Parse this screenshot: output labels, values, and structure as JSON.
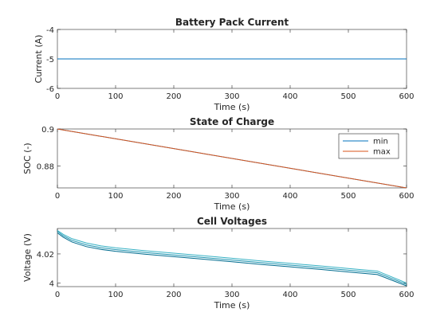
{
  "colors": {
    "series_blue": "#0072bd",
    "series_orange": "#d95319",
    "cell_teal_1": "#006c8f",
    "cell_teal_2": "#1b93b0",
    "cell_teal_3": "#36b1c4",
    "axis": "#262626"
  },
  "chart_data": [
    {
      "type": "line",
      "title": "Battery Pack Current",
      "xlabel": "Time (s)",
      "ylabel": "Current (A)",
      "xlim": [
        0,
        600
      ],
      "ylim": [
        -6,
        -4
      ],
      "xticks": [
        0,
        100,
        200,
        300,
        400,
        500,
        600
      ],
      "yticks": [
        -6,
        -5,
        -4
      ],
      "grid": false,
      "series": [
        {
          "color_key": "series_blue",
          "x": [
            0,
            600
          ],
          "y": [
            -5,
            -5
          ]
        }
      ]
    },
    {
      "type": "line",
      "title": "State of Charge",
      "xlabel": "Time (s)",
      "ylabel": "SOC (-)",
      "xlim": [
        0,
        600
      ],
      "ylim": [
        0.8683,
        0.9
      ],
      "xticks": [
        0,
        100,
        200,
        300,
        400,
        500,
        600
      ],
      "yticks": [
        0.88,
        0.9
      ],
      "grid": false,
      "legend": {
        "placement": "top-right",
        "entries": [
          "min",
          "max"
        ]
      },
      "series": [
        {
          "name": "min",
          "color_key": "series_blue",
          "x": [
            0,
            600
          ],
          "y": [
            0.9,
            0.8683
          ]
        },
        {
          "name": "max",
          "color_key": "series_orange",
          "x": [
            0,
            600
          ],
          "y": [
            0.9,
            0.8683
          ]
        }
      ]
    },
    {
      "type": "line",
      "title": "Cell Voltages",
      "xlabel": "Time (s)",
      "ylabel": "Voltage (V)",
      "xlim": [
        0,
        600
      ],
      "ylim": [
        3.9975,
        4.0375
      ],
      "xticks": [
        0,
        100,
        200,
        300,
        400,
        500,
        600
      ],
      "yticks": [
        4,
        4.02
      ],
      "ytick_labels": [
        "4",
        "4.02"
      ],
      "grid": false,
      "series": [
        {
          "color_key": "cell_teal_3",
          "x": [
            0,
            10,
            25,
            50,
            75,
            100,
            150,
            200,
            250,
            300,
            350,
            400,
            450,
            500,
            550,
            600
          ],
          "y": [
            4.0362,
            4.0335,
            4.0305,
            4.0275,
            4.0255,
            4.0242,
            4.0222,
            4.0205,
            4.0188,
            4.017,
            4.0152,
            4.0135,
            4.0118,
            4.01,
            4.0082,
            4.0
          ]
        },
        {
          "color_key": "cell_teal_2",
          "x": [
            0,
            10,
            25,
            50,
            75,
            100,
            150,
            200,
            250,
            300,
            350,
            400,
            450,
            500,
            550,
            600
          ],
          "y": [
            4.0355,
            4.0325,
            4.0293,
            4.0262,
            4.0243,
            4.023,
            4.021,
            4.0193,
            4.0176,
            4.0158,
            4.014,
            4.0123,
            4.0106,
            4.0088,
            4.007,
            3.999
          ]
        },
        {
          "color_key": "cell_teal_1",
          "x": [
            0,
            10,
            25,
            50,
            75,
            100,
            150,
            200,
            250,
            300,
            350,
            400,
            450,
            500,
            550,
            600
          ],
          "y": [
            4.0345,
            4.0315,
            4.0282,
            4.025,
            4.0231,
            4.0218,
            4.0198,
            4.0181,
            4.0164,
            4.0146,
            4.0128,
            4.0111,
            4.0094,
            4.0076,
            4.0058,
            3.998
          ]
        }
      ]
    }
  ]
}
